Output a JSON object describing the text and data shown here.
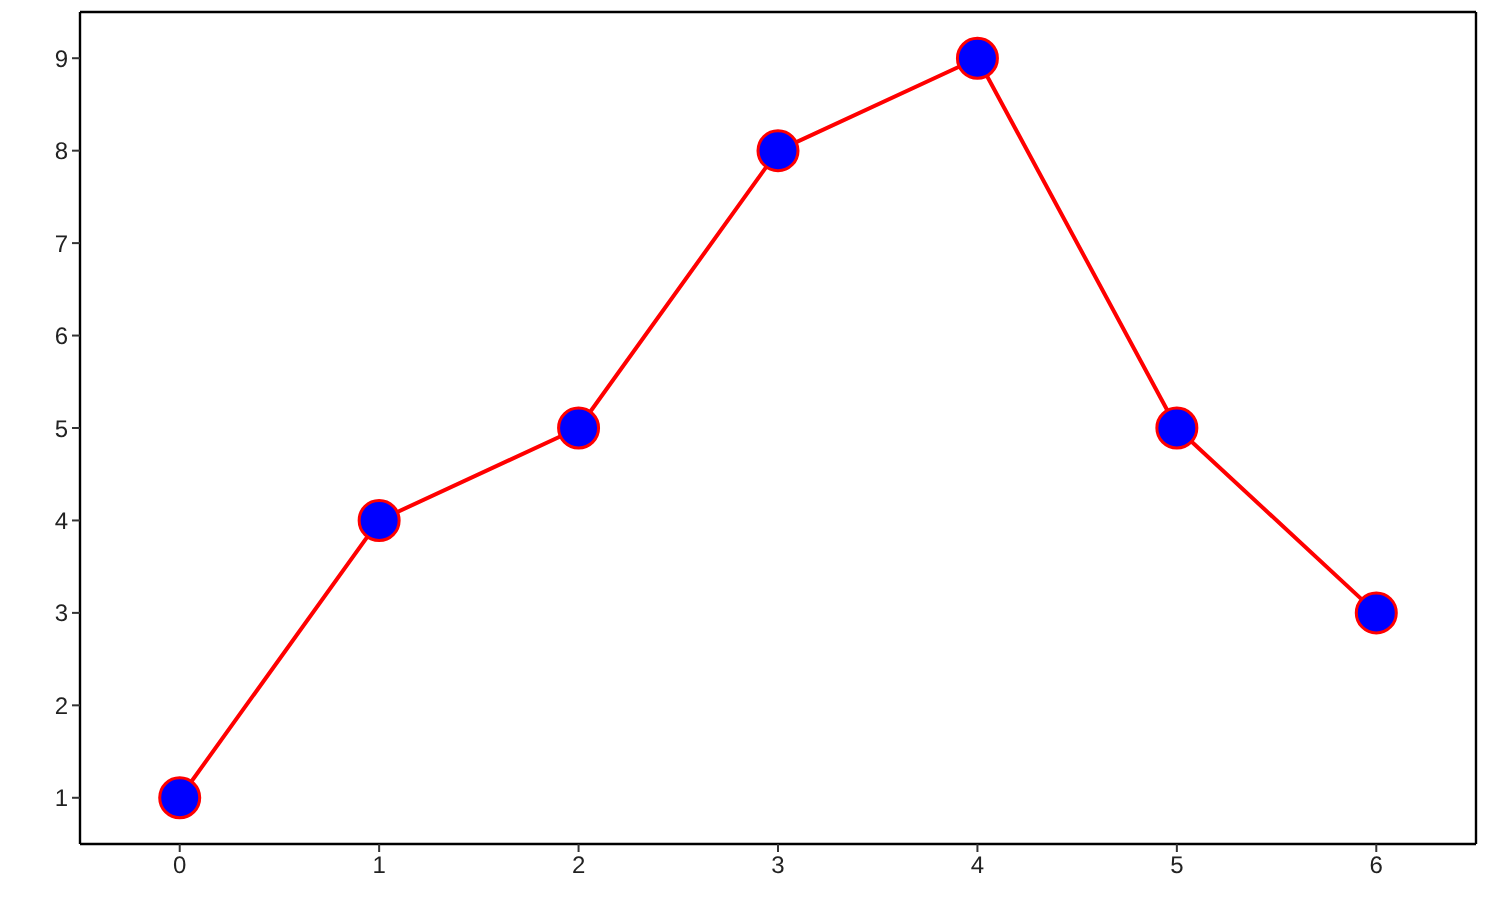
{
  "chart_data": {
    "type": "line",
    "x": [
      0,
      1,
      2,
      3,
      4,
      5,
      6
    ],
    "series": [
      {
        "color": "#ff0000",
        "colors": [
          "#0000ff",
          "#0000ff",
          "#0000ff",
          "#0000ff",
          "#0000ff",
          "#0000ff",
          "#0000ff"
        ],
        "values": [
          1,
          4,
          5,
          8,
          9,
          5,
          3
        ]
      }
    ],
    "marker": "circle",
    "xlim": [
      -0.5,
      6.5
    ],
    "xticks": [
      0,
      1,
      2,
      3,
      4,
      5,
      6
    ],
    "ylim": [
      0.5,
      9.5
    ],
    "yticks": [
      1,
      2,
      3,
      4,
      5,
      6,
      7,
      8,
      9
    ]
  }
}
